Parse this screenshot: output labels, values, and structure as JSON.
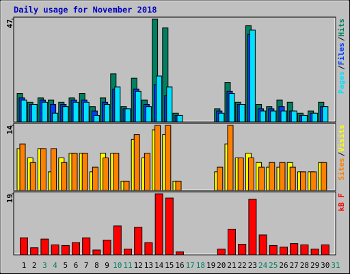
{
  "title": "Daily usage for November 2018",
  "legend_separator": "/",
  "chart_data": [
    {
      "type": "bar",
      "ylim": [
        0,
        47
      ],
      "yticks": [
        47
      ],
      "series": [
        {
          "name": "Hits",
          "color": "#008060",
          "values": [
            13,
            9,
            11,
            10,
            9,
            11,
            13,
            7,
            11,
            22,
            7,
            20,
            10,
            47,
            43,
            4,
            null,
            null,
            null,
            6,
            18,
            9,
            44,
            8,
            7,
            10,
            9,
            4,
            5,
            9,
            null
          ]
        },
        {
          "name": "Files",
          "color": "#0040ff",
          "values": [
            11,
            8,
            10,
            8,
            8,
            10,
            10,
            5,
            9,
            15,
            6,
            15,
            8,
            17,
            12,
            3,
            null,
            null,
            null,
            5,
            14,
            8,
            40,
            6,
            6,
            7,
            5,
            3,
            4,
            7,
            null
          ]
        },
        {
          "name": "Pages",
          "color": "#00e0ff",
          "values": [
            10,
            8,
            9,
            4,
            7,
            9,
            9,
            3,
            8,
            16,
            6,
            14,
            7,
            21,
            16,
            3,
            null,
            null,
            null,
            4,
            13,
            8,
            42,
            5,
            5,
            5,
            5,
            3,
            4,
            7,
            null
          ]
        }
      ]
    },
    {
      "type": "bar",
      "ylim": [
        0,
        14
      ],
      "yticks": [
        14
      ],
      "series": [
        {
          "name": "Visits",
          "color": "#ffff00",
          "values": [
            9,
            7,
            9,
            4,
            7,
            8,
            8,
            4,
            8,
            8,
            2,
            11,
            7,
            13,
            12,
            2,
            null,
            null,
            null,
            4,
            10,
            7,
            8,
            6,
            5,
            5,
            6,
            4,
            4,
            6,
            null
          ]
        },
        {
          "name": "Sites",
          "color": "#ff8000",
          "values": [
            10,
            6,
            9,
            9,
            6,
            8,
            8,
            5,
            7,
            8,
            2,
            12,
            8,
            14,
            14,
            2,
            null,
            null,
            null,
            5,
            14,
            7,
            7,
            5,
            6,
            6,
            5,
            4,
            4,
            6,
            null
          ]
        }
      ]
    },
    {
      "type": "bar",
      "ylim": [
        0,
        19
      ],
      "yticks": [
        19
      ],
      "series": [
        {
          "name": "kB F",
          "color": "#ff0000",
          "values": [
            5.3,
            2.2,
            4.9,
            3.1,
            2.9,
            3.8,
            5.3,
            1.5,
            4.6,
            9.0,
            1.8,
            8.6,
            3.8,
            19,
            17.7,
            0.9,
            null,
            null,
            null,
            1.8,
            8.0,
            3.3,
            17.3,
            6.2,
            2.9,
            2.4,
            3.5,
            3.1,
            1.8,
            3.1,
            null
          ]
        }
      ],
      "categories": [
        "1",
        "2",
        "3",
        "4",
        "5",
        "6",
        "7",
        "8",
        "9",
        "10",
        "11",
        "12",
        "13",
        "14",
        "15",
        "16",
        "17",
        "18",
        "19",
        "20",
        "21",
        "22",
        "23",
        "24",
        "25",
        "26",
        "27",
        "28",
        "29",
        "30",
        "31"
      ],
      "category_colors": [
        "#000000",
        "#000000",
        "#008060",
        "#008060",
        "#000000",
        "#000000",
        "#000000",
        "#000000",
        "#000000",
        "#008060",
        "#008060",
        "#000000",
        "#000000",
        "#000000",
        "#000000",
        "#000000",
        "#008060",
        "#008060",
        "#000000",
        "#000000",
        "#000000",
        "#000000",
        "#000000",
        "#008060",
        "#008060",
        "#000000",
        "#000000",
        "#000000",
        "#000000",
        "#000000",
        "#008060"
      ]
    }
  ]
}
